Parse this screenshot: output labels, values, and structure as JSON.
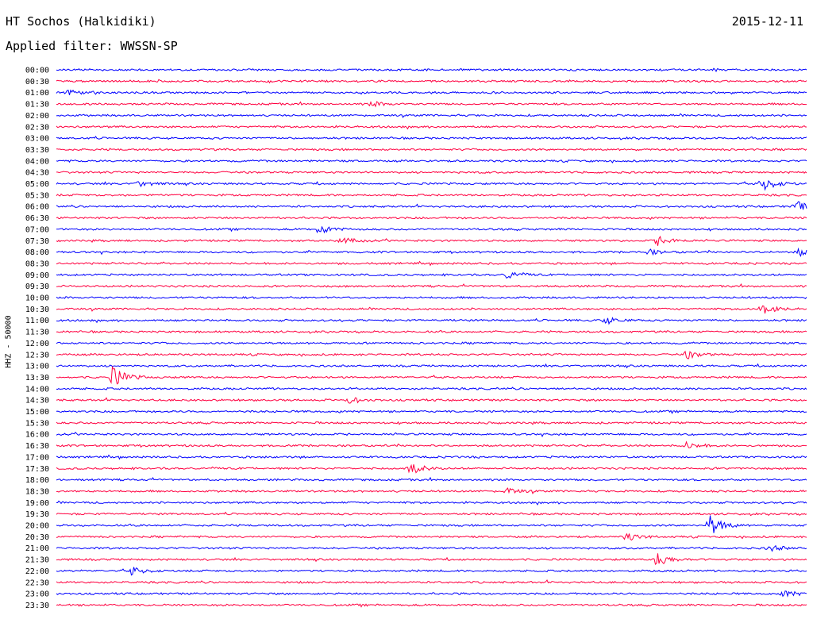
{
  "header": {
    "station": "HT Sochos (Halkidiki)",
    "date": "2015-12-11",
    "filter": "Applied filter: WWSSN-SP",
    "channel": "HHZ - 50000"
  },
  "colors": {
    "blue_trace": "#0000ff",
    "red_trace": "#ff0040"
  },
  "chart_data": {
    "type": "line",
    "title": "HT Sochos (Halkidiki)",
    "subtitle": "Applied filter: WWSSN-SP",
    "ylabel": "HHZ - 50000",
    "y_tick_labels": [
      "00:00",
      "00:30",
      "01:00",
      "01:30",
      "02:00",
      "02:30",
      "03:00",
      "03:30",
      "04:00",
      "04:30",
      "05:00",
      "05:30",
      "06:00",
      "06:30",
      "07:00",
      "07:30",
      "08:00",
      "08:30",
      "09:00",
      "09:30",
      "10:00",
      "10:30",
      "11:00",
      "11:30",
      "12:00",
      "12:30",
      "13:00",
      "13:30",
      "14:00",
      "14:30",
      "15:00",
      "15:30",
      "16:00",
      "16:30",
      "17:00",
      "17:30",
      "18:00",
      "18:30",
      "19:00",
      "19:30",
      "20:00",
      "20:30",
      "21:00",
      "21:30",
      "22:00",
      "22:30",
      "23:00",
      "23:30"
    ],
    "series_colors_alternating": [
      "blue",
      "red"
    ],
    "trace_minutes_per_line": 30,
    "events": [
      {
        "line": 2,
        "pos": 0.015,
        "amp": 4
      },
      {
        "line": 3,
        "pos": 0.42,
        "amp": 3
      },
      {
        "line": 10,
        "pos": 0.11,
        "amp": 4
      },
      {
        "line": 10,
        "pos": 0.94,
        "amp": 10
      },
      {
        "line": 12,
        "pos": 0.985,
        "amp": 7
      },
      {
        "line": 14,
        "pos": 0.35,
        "amp": 6
      },
      {
        "line": 15,
        "pos": 0.38,
        "amp": 4
      },
      {
        "line": 15,
        "pos": 0.8,
        "amp": 6
      },
      {
        "line": 16,
        "pos": 0.79,
        "amp": 3
      },
      {
        "line": 16,
        "pos": 0.99,
        "amp": 5
      },
      {
        "line": 18,
        "pos": 0.6,
        "amp": 5
      },
      {
        "line": 21,
        "pos": 0.94,
        "amp": 7
      },
      {
        "line": 22,
        "pos": 0.73,
        "amp": 5
      },
      {
        "line": 25,
        "pos": 0.84,
        "amp": 5
      },
      {
        "line": 27,
        "pos": 0.075,
        "amp": 13
      },
      {
        "line": 29,
        "pos": 0.39,
        "amp": 4
      },
      {
        "line": 33,
        "pos": 0.84,
        "amp": 4
      },
      {
        "line": 35,
        "pos": 0.47,
        "amp": 8
      },
      {
        "line": 37,
        "pos": 0.6,
        "amp": 4
      },
      {
        "line": 40,
        "pos": 0.87,
        "amp": 14
      },
      {
        "line": 41,
        "pos": 0.76,
        "amp": 5
      },
      {
        "line": 42,
        "pos": 0.95,
        "amp": 4
      },
      {
        "line": 43,
        "pos": 0.8,
        "amp": 9
      },
      {
        "line": 44,
        "pos": 0.1,
        "amp": 5
      },
      {
        "line": 46,
        "pos": 0.97,
        "amp": 4
      }
    ]
  }
}
